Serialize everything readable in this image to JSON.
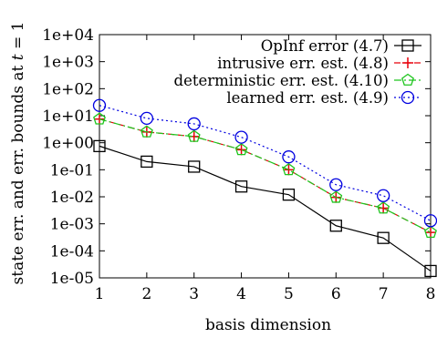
{
  "chart_data": {
    "type": "line",
    "xlabel": "basis dimension",
    "ylabel_prefix": "state err. and err. bounds at ",
    "ylabel_var": "t",
    "ylabel_suffix": " = 1",
    "x": [
      1,
      2,
      3,
      4,
      5,
      6,
      7,
      8
    ],
    "xlim": [
      1,
      8
    ],
    "ylim": [
      1e-05,
      10000.0
    ],
    "yscale": "log",
    "xticks": [
      "1",
      "2",
      "3",
      "4",
      "5",
      "6",
      "7",
      "8"
    ],
    "yticks": [
      "1e-05",
      "1e-04",
      "1e-03",
      "1e-02",
      "1e-01",
      "1e+00",
      "1e+01",
      "1e+02",
      "1e+03",
      "1e+04"
    ],
    "grid": false,
    "legend_position": "top-right",
    "series": [
      {
        "name": "OpInf error (4.7)",
        "color": "#000000",
        "line": "solid",
        "marker": "square",
        "values": [
          0.75,
          0.2,
          0.13,
          0.024,
          0.012,
          0.00085,
          0.0003,
          1.8e-05
        ]
      },
      {
        "name": "intrusive err. est. (4.8)",
        "color": "#e8000b",
        "line": "dashed",
        "marker": "plus",
        "values": [
          7.5,
          2.5,
          1.7,
          0.55,
          0.1,
          0.0095,
          0.0038,
          0.00048
        ]
      },
      {
        "name": "deterministic err. est. (4.10)",
        "color": "#1ec51e",
        "line": "dashdot",
        "marker": "pentagon",
        "values": [
          7.5,
          2.5,
          1.7,
          0.55,
          0.1,
          0.0095,
          0.0038,
          0.00048
        ]
      },
      {
        "name": "learned err. est. (4.9)",
        "color": "#0000e0",
        "line": "dotted",
        "marker": "circle",
        "values": [
          24,
          8,
          5,
          1.6,
          0.3,
          0.028,
          0.011,
          0.0013
        ]
      }
    ]
  }
}
